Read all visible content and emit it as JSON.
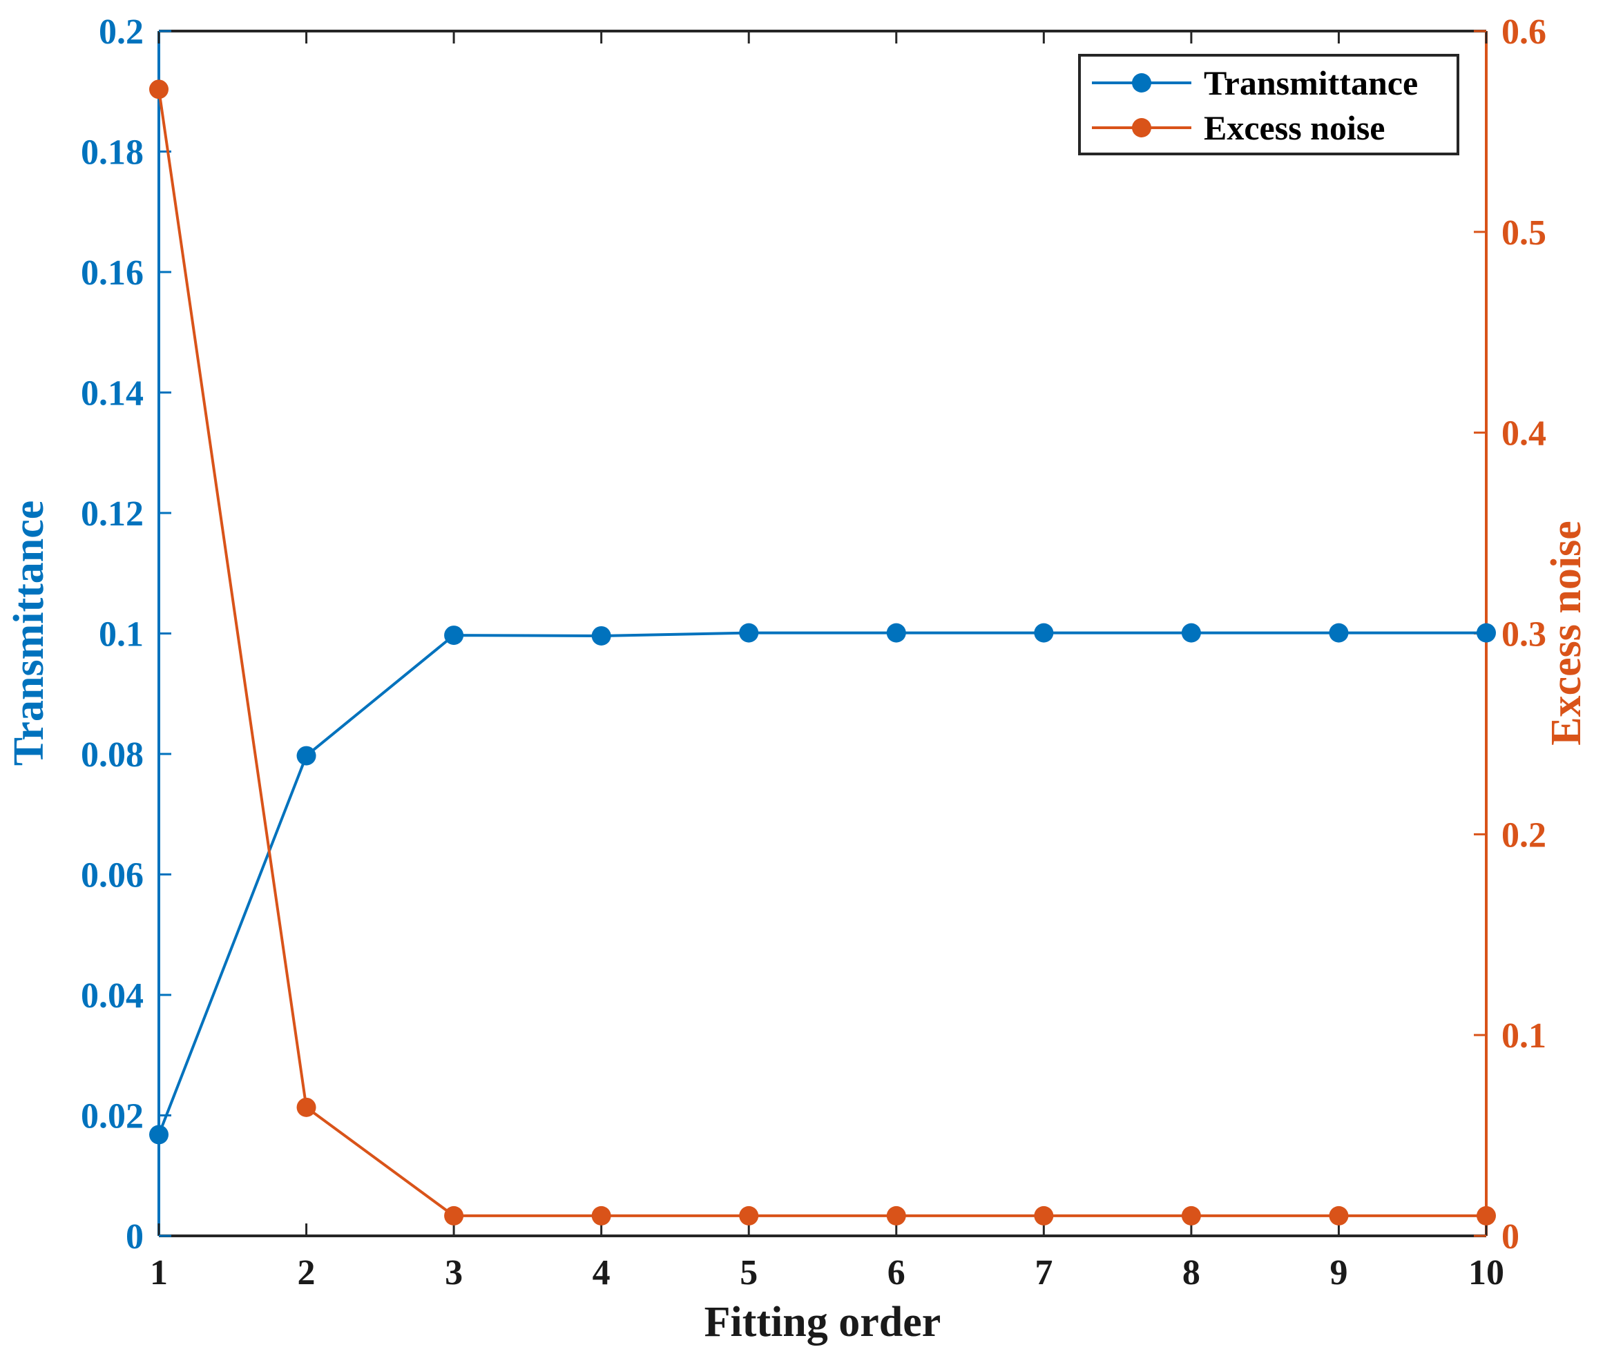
{
  "chart_data": {
    "type": "line",
    "title": "",
    "xlabel": "Fitting order",
    "ylabel_left": "Transmittance",
    "ylabel_right": "Excess noise",
    "x": [
      1,
      2,
      3,
      4,
      5,
      6,
      7,
      8,
      9,
      10
    ],
    "xticks": [
      "1",
      "2",
      "3",
      "4",
      "5",
      "6",
      "7",
      "8",
      "9",
      "10"
    ],
    "xlim": [
      1,
      10
    ],
    "ylim_left": [
      0,
      0.2
    ],
    "ylim_right": [
      0,
      0.6
    ],
    "yticks_left": [
      "0",
      "0.02",
      "0.04",
      "0.06",
      "0.08",
      "0.1",
      "0.12",
      "0.14",
      "0.16",
      "0.18",
      "0.2"
    ],
    "yticks_right": [
      "0",
      "0.1",
      "0.2",
      "0.3",
      "0.4",
      "0.5",
      "0.6"
    ],
    "grid": false,
    "legend_position": "top-right",
    "series": [
      {
        "name": "Transmittance",
        "axis": "left",
        "color": "#0072BD",
        "values": [
          0.0168,
          0.0797,
          0.0997,
          0.0996,
          0.1001,
          0.1001,
          0.1001,
          0.1001,
          0.1001,
          0.1001
        ]
      },
      {
        "name": "Excess noise",
        "axis": "right",
        "color": "#D95319",
        "values": [
          0.571,
          0.064,
          0.01,
          0.01,
          0.01,
          0.01,
          0.01,
          0.01,
          0.01,
          0.01
        ]
      }
    ]
  }
}
